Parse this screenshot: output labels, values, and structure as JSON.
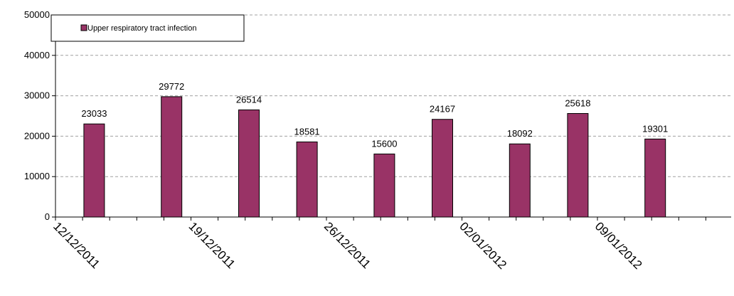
{
  "chart_data": {
    "type": "bar",
    "title": "",
    "xlabel": "",
    "ylabel": "",
    "ylim": [
      0,
      50000
    ],
    "y_ticks": [
      0,
      10000,
      20000,
      30000,
      40000,
      50000
    ],
    "x_tick_labels": [
      "12/12/2011",
      "19/12/2011",
      "26/12/2011",
      "02/01/2012",
      "09/01/2012"
    ],
    "grid": true,
    "legend_position": "top-left",
    "series": [
      {
        "name": "Upper respiratory tract infection",
        "color": "#993366",
        "points": [
          {
            "date": "14/12/2011",
            "value": 23033
          },
          {
            "date": "18/12/2011",
            "value": 29772
          },
          {
            "date": "22/12/2011",
            "value": 26514
          },
          {
            "date": "25/12/2011",
            "value": 18581
          },
          {
            "date": "29/12/2011",
            "value": 15600
          },
          {
            "date": "01/01/2012",
            "value": 24167
          },
          {
            "date": "05/01/2012",
            "value": 18092
          },
          {
            "date": "08/01/2012",
            "value": 25618
          },
          {
            "date": "12/01/2012",
            "value": 19301
          }
        ]
      }
    ]
  }
}
